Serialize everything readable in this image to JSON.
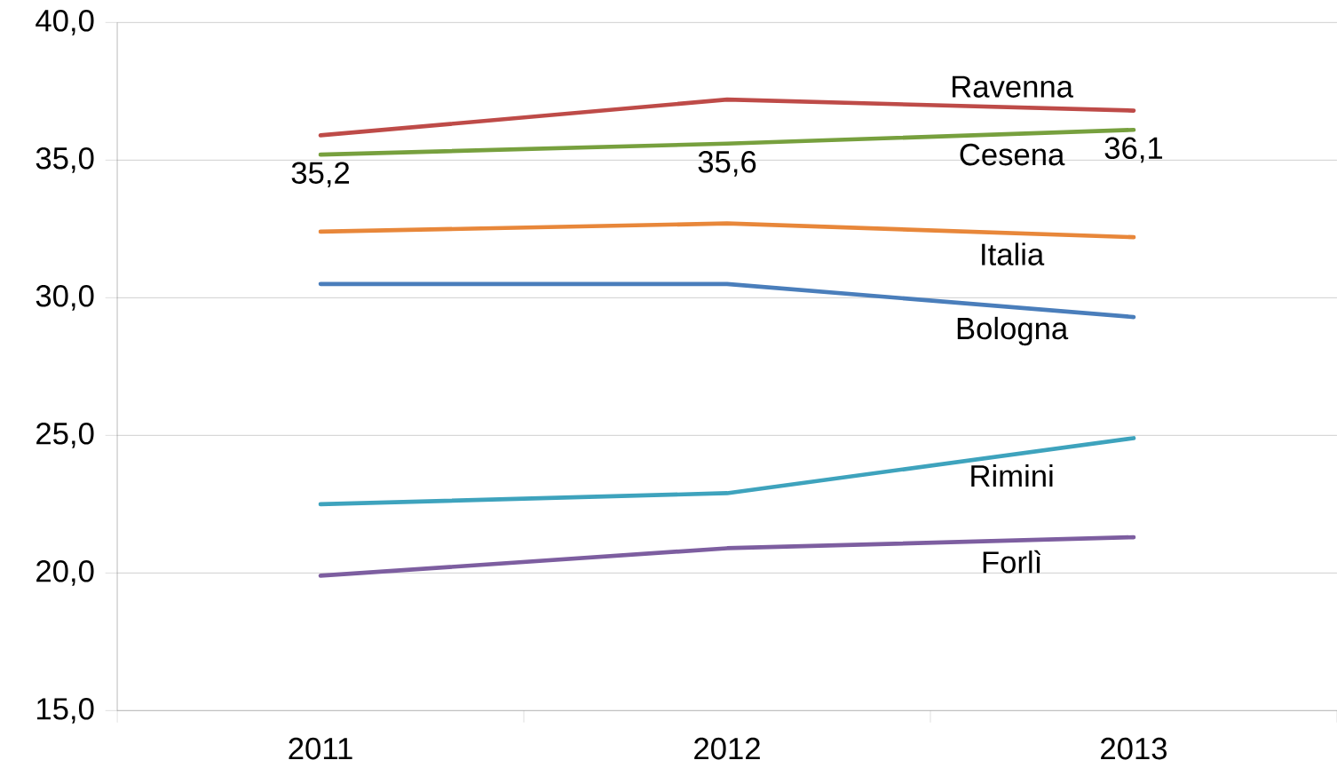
{
  "chart_data": {
    "type": "line",
    "categories": [
      "2011",
      "2012",
      "2013"
    ],
    "ylim": [
      15,
      40
    ],
    "yticks": [
      {
        "value": 15,
        "label": "15,0"
      },
      {
        "value": 20,
        "label": "20,0"
      },
      {
        "value": 25,
        "label": "25,0"
      },
      {
        "value": 30,
        "label": "30,0"
      },
      {
        "value": 35,
        "label": "35,0"
      },
      {
        "value": 40,
        "label": "40,0"
      }
    ],
    "grid": "y",
    "marker": "none",
    "line_style": "solid",
    "series": [
      {
        "name": "Ravenna",
        "color": "#be4b48",
        "values": [
          35.9,
          37.2,
          36.8
        ]
      },
      {
        "name": "Cesena",
        "color": "#77a03e",
        "values": [
          35.2,
          35.6,
          36.1
        ],
        "value_labels": [
          "35,2",
          "35,6",
          "36,1"
        ]
      },
      {
        "name": "Italia",
        "color": "#e8873a",
        "values": [
          32.4,
          32.7,
          32.2
        ]
      },
      {
        "name": "Bologna",
        "color": "#4a7ebb",
        "values": [
          30.5,
          30.5,
          29.3
        ]
      },
      {
        "name": "Rimini",
        "color": "#3ea3bd",
        "values": [
          22.5,
          22.9,
          24.9
        ]
      },
      {
        "name": "Forlì",
        "color": "#7d5ea0",
        "values": [
          19.9,
          20.9,
          21.3
        ]
      }
    ]
  }
}
